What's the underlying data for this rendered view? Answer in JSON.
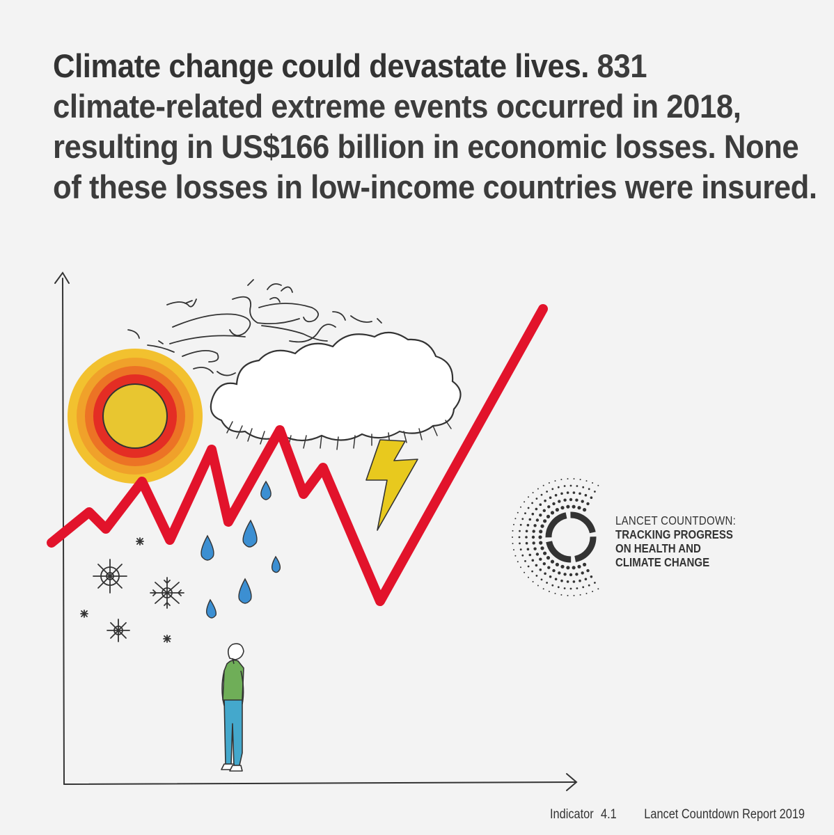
{
  "headline": {
    "lead": "Climate change could devastate lives.",
    "line1_rest": " 831",
    "line2": "climate-related extreme events occurred in 2018,",
    "line3": "resulting in US$166 billion in economic losses. None",
    "line4": "of these losses in low-income countries were insured."
  },
  "logo": {
    "line1": "LANCET COUNTDOWN:",
    "line2": "TRACKING PROGRESS",
    "line3": "ON HEALTH AND",
    "line4": "CLIMATE CHANGE"
  },
  "footer": {
    "indicator_label": "Indicator",
    "indicator_number": "4.1",
    "report": "Lancet Countdown Report 2019"
  },
  "colors": {
    "background": "#f3f3f3",
    "trend_line": "#e2132b",
    "sun_core": "#e8c630",
    "sun_ring_red": "#e42d24",
    "sun_ring_orange": "#ef7f24",
    "sun_ring_yellow": "#f1b52a",
    "raindrop": "#3c8fd2",
    "lightning": "#e8c91e",
    "shirt": "#6fae58",
    "trousers": "#44a8cc",
    "ink": "#333333"
  }
}
